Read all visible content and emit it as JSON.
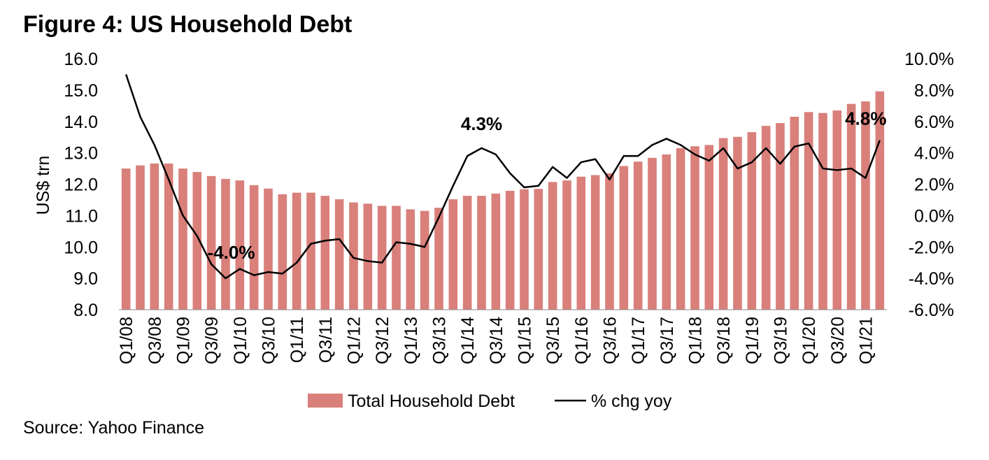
{
  "title": "Figure 4: US Household Debt",
  "source": "Source: Yahoo Finance",
  "chart_data": {
    "type": "bar",
    "title": "Figure 4: US Household Debt",
    "ylabel": "US$ trn",
    "ylim": [
      8.0,
      16.0
    ],
    "y2lim": [
      -6.0,
      10.0
    ],
    "yticks": [
      "8.0",
      "9.0",
      "10.0",
      "11.0",
      "12.0",
      "13.0",
      "14.0",
      "15.0",
      "16.0"
    ],
    "y2ticks": [
      "-6.0%",
      "-4.0%",
      "-2.0%",
      "0.0%",
      "2.0%",
      "4.0%",
      "6.0%",
      "8.0%",
      "10.0%"
    ],
    "categories": [
      "Q1/08",
      "Q2/08",
      "Q3/08",
      "Q4/08",
      "Q1/09",
      "Q2/09",
      "Q3/09",
      "Q4/09",
      "Q1/10",
      "Q2/10",
      "Q3/10",
      "Q4/10",
      "Q1/11",
      "Q2/11",
      "Q3/11",
      "Q4/11",
      "Q1/12",
      "Q2/12",
      "Q3/12",
      "Q4/12",
      "Q1/13",
      "Q2/13",
      "Q3/13",
      "Q4/13",
      "Q1/14",
      "Q2/14",
      "Q3/14",
      "Q4/14",
      "Q1/15",
      "Q2/15",
      "Q3/15",
      "Q4/15",
      "Q1/16",
      "Q2/16",
      "Q3/16",
      "Q4/16",
      "Q1/17",
      "Q2/17",
      "Q3/17",
      "Q4/17",
      "Q1/18",
      "Q2/18",
      "Q3/18",
      "Q4/18",
      "Q1/19",
      "Q2/19",
      "Q3/19",
      "Q4/19",
      "Q1/20",
      "Q2/20",
      "Q3/20",
      "Q4/20",
      "Q1/21",
      "Q2/21"
    ],
    "xtick_labels": [
      "Q1/08",
      "Q3/08",
      "Q1/09",
      "Q3/09",
      "Q1/10",
      "Q3/10",
      "Q1/11",
      "Q3/11",
      "Q1/12",
      "Q3/12",
      "Q1/13",
      "Q3/13",
      "Q1/14",
      "Q3/14",
      "Q1/15",
      "Q3/15",
      "Q1/16",
      "Q3/16",
      "Q1/17",
      "Q3/17",
      "Q1/18",
      "Q3/18",
      "Q1/19",
      "Q3/19",
      "Q1/20",
      "Q3/20",
      "Q1/21"
    ],
    "series": [
      {
        "name": "Total Household Debt",
        "type": "bar",
        "axis": "left",
        "color": "#d9807b",
        "values": [
          12.5,
          12.6,
          12.66,
          12.66,
          12.5,
          12.39,
          12.26,
          12.17,
          12.12,
          11.97,
          11.86,
          11.68,
          11.73,
          11.73,
          11.63,
          11.52,
          11.42,
          11.38,
          11.31,
          11.31,
          11.2,
          11.15,
          11.25,
          11.52,
          11.63,
          11.63,
          11.7,
          11.79,
          11.84,
          11.85,
          12.07,
          12.12,
          12.24,
          12.29,
          12.35,
          12.58,
          12.72,
          12.84,
          12.95,
          13.15,
          13.21,
          13.25,
          13.47,
          13.51,
          13.66,
          13.86,
          13.95,
          14.15,
          14.3,
          14.27,
          14.35,
          14.56,
          14.64,
          14.96
        ]
      },
      {
        "name": "% chg yoy",
        "type": "line",
        "axis": "right",
        "color": "#000000",
        "values": [
          9.0,
          6.3,
          4.5,
          2.3,
          0.0,
          -1.3,
          -3.1,
          -4.0,
          -3.4,
          -3.8,
          -3.6,
          -3.7,
          -3.0,
          -1.8,
          -1.6,
          -1.5,
          -2.7,
          -2.9,
          -3.0,
          -1.7,
          -1.8,
          -2.0,
          -0.1,
          1.9,
          3.8,
          4.3,
          3.9,
          2.7,
          1.8,
          1.9,
          3.1,
          2.4,
          3.4,
          3.6,
          2.3,
          3.8,
          3.8,
          4.5,
          4.9,
          4.5,
          3.9,
          3.5,
          4.3,
          3.0,
          3.4,
          4.3,
          3.3,
          4.4,
          4.6,
          3.0,
          2.9,
          3.0,
          2.4,
          4.8
        ]
      }
    ],
    "annotations": [
      {
        "text": "-4.0%",
        "index": 7
      },
      {
        "text": "4.3%",
        "index": 25
      },
      {
        "text": "4.8%",
        "index": 53
      }
    ],
    "legend": {
      "position": "bottom",
      "items": [
        "Total Household Debt",
        "% chg yoy"
      ]
    }
  }
}
